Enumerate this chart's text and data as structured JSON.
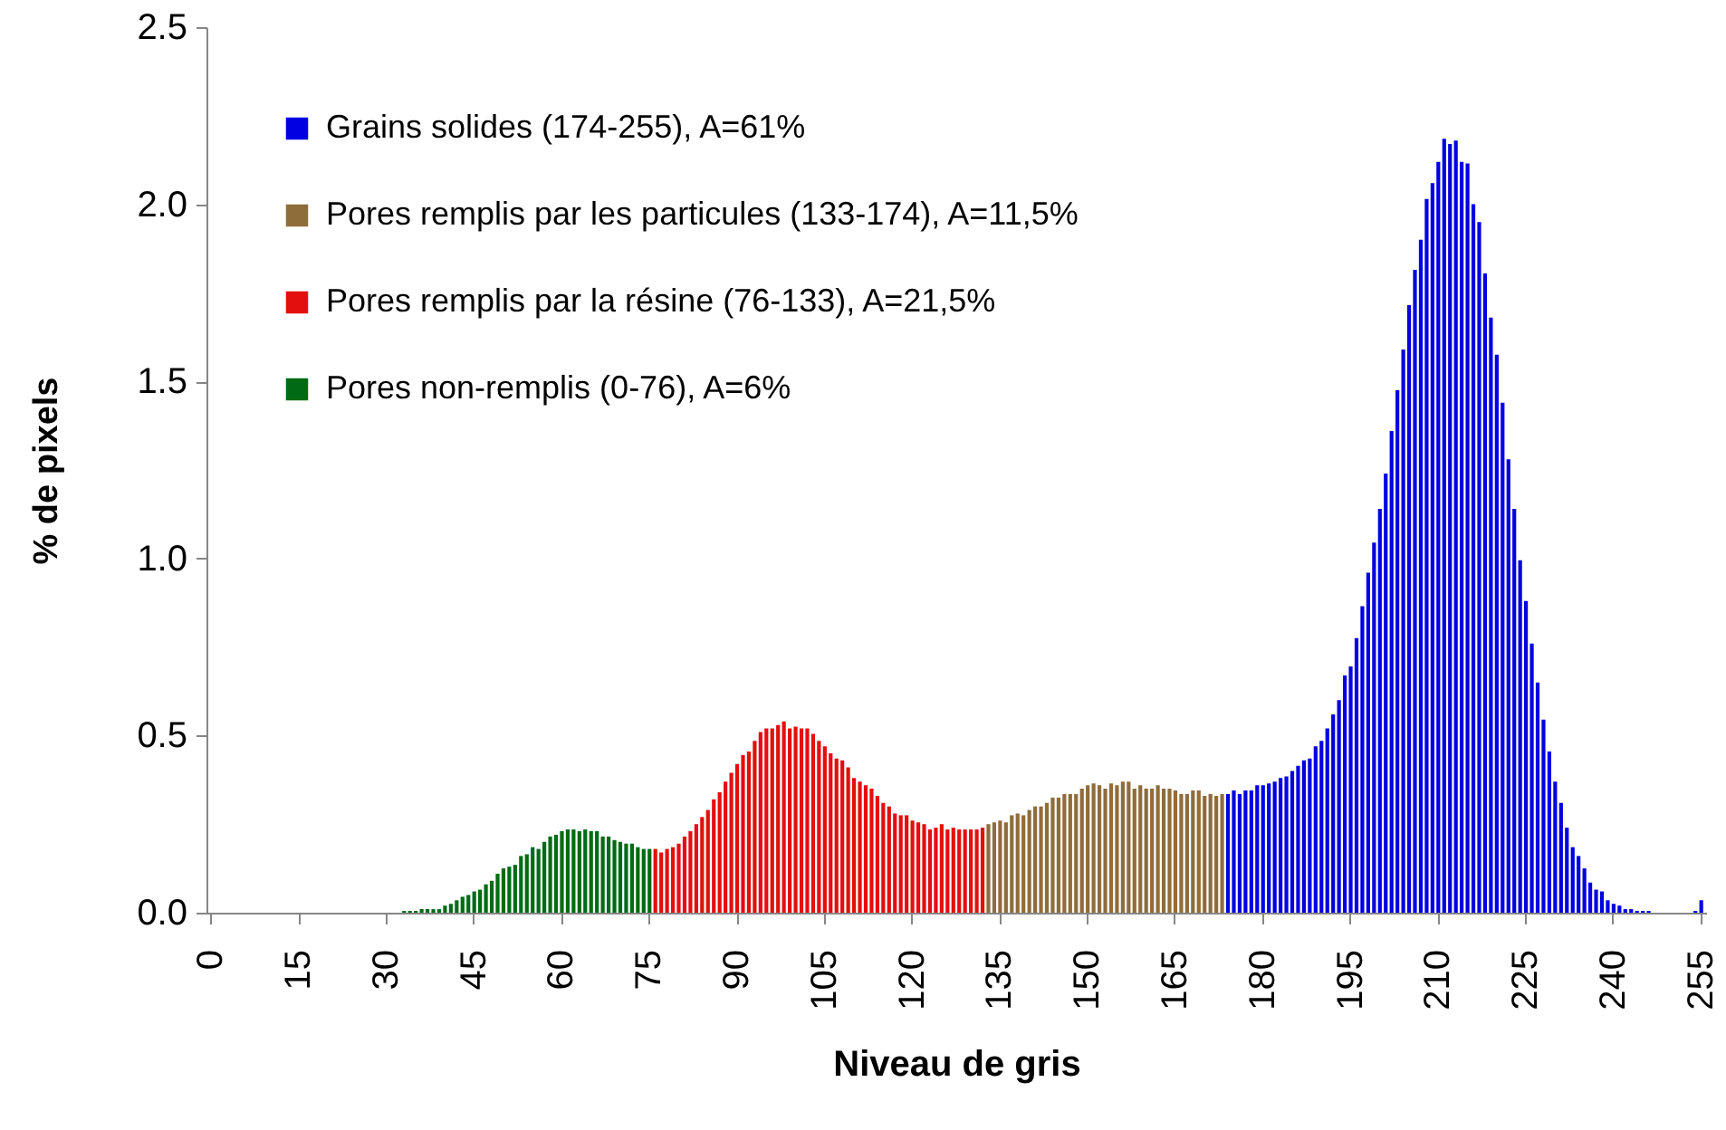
{
  "chart_data": {
    "type": "bar",
    "xlabel": "Niveau de gris",
    "ylabel": "% de pixels",
    "categories": [
      "0",
      null,
      null,
      null,
      null,
      null,
      null,
      null,
      null,
      null,
      null,
      null,
      null,
      null,
      null,
      "15",
      null,
      null,
      null,
      null,
      null,
      null,
      null,
      null,
      null,
      null,
      null,
      null,
      null,
      null,
      "30",
      null,
      null,
      null,
      null,
      null,
      null,
      null,
      null,
      null,
      null,
      null,
      null,
      null,
      null,
      "45",
      null,
      null,
      null,
      null,
      null,
      null,
      null,
      null,
      null,
      null,
      null,
      null,
      null,
      null,
      "60",
      null,
      null,
      null,
      null,
      null,
      null,
      null,
      null,
      null,
      null,
      null,
      null,
      null,
      null,
      "75",
      null,
      null,
      null,
      null,
      null,
      null,
      null,
      null,
      null,
      null,
      null,
      null,
      null,
      null,
      "90",
      null,
      null,
      null,
      null,
      null,
      null,
      null,
      null,
      null,
      null,
      null,
      null,
      null,
      null,
      "105",
      null,
      null,
      null,
      null,
      null,
      null,
      null,
      null,
      null,
      null,
      null,
      null,
      null,
      null,
      "120",
      null,
      null,
      null,
      null,
      null,
      null,
      null,
      null,
      null,
      null,
      null,
      null,
      null,
      null,
      "135",
      null,
      null,
      null,
      null,
      null,
      null,
      null,
      null,
      null,
      null,
      null,
      null,
      null,
      null,
      "150",
      null,
      null,
      null,
      null,
      null,
      null,
      null,
      null,
      null,
      null,
      null,
      null,
      null,
      null,
      "165",
      null,
      null,
      null,
      null,
      null,
      null,
      null,
      null,
      null,
      null,
      null,
      null,
      null,
      null,
      "180",
      null,
      null,
      null,
      null,
      null,
      null,
      null,
      null,
      null,
      null,
      null,
      null,
      null,
      null,
      "195",
      null,
      null,
      null,
      null,
      null,
      null,
      null,
      null,
      null,
      null,
      null,
      null,
      null,
      null,
      "210",
      null,
      null,
      null,
      null,
      null,
      null,
      null,
      null,
      null,
      null,
      null,
      null,
      null,
      null,
      "225",
      null,
      null,
      null,
      null,
      null,
      null,
      null,
      null,
      null,
      null,
      null,
      null,
      null,
      null,
      "240",
      null,
      null,
      null,
      null,
      null,
      null,
      null,
      null,
      null,
      null,
      null,
      null,
      null,
      null,
      "255"
    ],
    "series": [
      {
        "name": "Grains solides (174-255), A=61%",
        "color": "#0000e0",
        "values": [
          null,
          null,
          null,
          null,
          null,
          null,
          null,
          null,
          null,
          null,
          null,
          null,
          null,
          null,
          null,
          null,
          null,
          null,
          null,
          null,
          null,
          null,
          null,
          null,
          null,
          null,
          null,
          null,
          null,
          null,
          null,
          null,
          null,
          null,
          null,
          null,
          null,
          null,
          null,
          null,
          null,
          null,
          null,
          null,
          null,
          null,
          null,
          null,
          null,
          null,
          null,
          null,
          null,
          null,
          null,
          null,
          null,
          null,
          null,
          null,
          null,
          null,
          null,
          null,
          null,
          null,
          null,
          null,
          null,
          null,
          null,
          null,
          null,
          null,
          null,
          null,
          null,
          null,
          null,
          null,
          null,
          null,
          null,
          null,
          null,
          null,
          null,
          null,
          null,
          null,
          null,
          null,
          null,
          null,
          null,
          null,
          null,
          null,
          null,
          null,
          null,
          null,
          null,
          null,
          null,
          null,
          null,
          null,
          null,
          null,
          null,
          null,
          null,
          null,
          null,
          null,
          null,
          null,
          null,
          null,
          null,
          null,
          null,
          null,
          null,
          null,
          null,
          null,
          null,
          null,
          null,
          null,
          null,
          null,
          null,
          null,
          null,
          null,
          null,
          null,
          null,
          null,
          null,
          null,
          null,
          null,
          null,
          null,
          null,
          null,
          null,
          null,
          null,
          null,
          null,
          null,
          null,
          null,
          null,
          null,
          null,
          null,
          null,
          null,
          null,
          null,
          null,
          null,
          null,
          null,
          null,
          null,
          null,
          null,
          0.335,
          0.345,
          0.335,
          0.345,
          0.345,
          0.36,
          0.36,
          0.365,
          0.37,
          0.38,
          0.385,
          0.4,
          0.415,
          0.43,
          0.435,
          0.47,
          0.485,
          0.52,
          0.56,
          0.6,
          0.67,
          0.695,
          0.775,
          0.865,
          0.96,
          1.045,
          1.14,
          1.24,
          1.36,
          1.475,
          1.59,
          1.715,
          1.815,
          1.9,
          2.015,
          2.06,
          2.12,
          2.185,
          2.17,
          2.18,
          2.12,
          2.115,
          2.0,
          1.95,
          1.805,
          1.68,
          1.575,
          1.44,
          1.28,
          1.14,
          0.995,
          0.88,
          0.76,
          0.65,
          0.545,
          0.455,
          0.37,
          0.31,
          0.24,
          0.185,
          0.16,
          0.125,
          0.085,
          0.065,
          0.06,
          0.035,
          0.025,
          0.02,
          0.01,
          0.01,
          0.005,
          0.005,
          0.005,
          0,
          0,
          0,
          0,
          0,
          0,
          0,
          0.005,
          0.035
        ]
      },
      {
        "name": "Pores remplis par les particules (133-174), A=11,5%",
        "color": "#8f6d3b",
        "values": [
          null,
          null,
          null,
          null,
          null,
          null,
          null,
          null,
          null,
          null,
          null,
          null,
          null,
          null,
          null,
          null,
          null,
          null,
          null,
          null,
          null,
          null,
          null,
          null,
          null,
          null,
          null,
          null,
          null,
          null,
          null,
          null,
          null,
          null,
          null,
          null,
          null,
          null,
          null,
          null,
          null,
          null,
          null,
          null,
          null,
          null,
          null,
          null,
          null,
          null,
          null,
          null,
          null,
          null,
          null,
          null,
          null,
          null,
          null,
          null,
          null,
          null,
          null,
          null,
          null,
          null,
          null,
          null,
          null,
          null,
          null,
          null,
          null,
          null,
          null,
          null,
          null,
          null,
          null,
          null,
          null,
          null,
          null,
          null,
          null,
          null,
          null,
          null,
          null,
          null,
          null,
          null,
          null,
          null,
          null,
          null,
          null,
          null,
          null,
          null,
          null,
          null,
          null,
          null,
          null,
          null,
          null,
          null,
          null,
          null,
          null,
          null,
          null,
          null,
          null,
          null,
          null,
          null,
          null,
          null,
          null,
          null,
          null,
          null,
          null,
          null,
          null,
          null,
          null,
          null,
          null,
          null,
          null,
          0.25,
          0.255,
          0.26,
          0.255,
          0.275,
          0.28,
          0.275,
          0.29,
          0.3,
          0.3,
          0.31,
          0.325,
          0.325,
          0.335,
          0.335,
          0.335,
          0.35,
          0.36,
          0.365,
          0.36,
          0.35,
          0.365,
          0.36,
          0.37,
          0.37,
          0.35,
          0.36,
          0.35,
          0.35,
          0.36,
          0.35,
          0.35,
          0.345,
          0.335,
          0.335,
          0.345,
          0.345,
          0.33,
          0.335,
          0.33,
          0.335,
          null,
          null,
          null,
          null,
          null,
          null,
          null,
          null,
          null,
          null,
          null,
          null,
          null,
          null,
          null,
          null,
          null,
          null,
          null,
          null,
          null,
          null,
          null,
          null,
          null,
          null,
          null,
          null,
          null,
          null,
          null,
          null,
          null,
          null,
          null,
          null,
          null,
          null,
          null,
          null,
          null,
          null,
          null,
          null,
          null,
          null,
          null,
          null,
          null,
          null,
          null,
          null,
          null,
          null,
          null,
          null,
          null,
          null,
          null,
          null,
          null,
          null,
          null,
          null,
          null,
          null,
          null,
          null,
          null,
          null,
          null,
          null,
          null,
          null,
          null,
          null,
          null,
          null,
          null,
          null,
          null,
          null
        ]
      },
      {
        "name": "Pores remplis par la résine (76-133), A=21,5%",
        "color": "#e30f0f",
        "values": [
          null,
          null,
          null,
          null,
          null,
          null,
          null,
          null,
          null,
          null,
          null,
          null,
          null,
          null,
          null,
          null,
          null,
          null,
          null,
          null,
          null,
          null,
          null,
          null,
          null,
          null,
          null,
          null,
          null,
          null,
          null,
          null,
          null,
          null,
          null,
          null,
          null,
          null,
          null,
          null,
          null,
          null,
          null,
          null,
          null,
          null,
          null,
          null,
          null,
          null,
          null,
          null,
          null,
          null,
          null,
          null,
          null,
          null,
          null,
          null,
          null,
          null,
          null,
          null,
          null,
          null,
          null,
          null,
          null,
          null,
          null,
          null,
          null,
          null,
          null,
          null,
          0.18,
          0.17,
          0.18,
          0.185,
          0.195,
          0.215,
          0.23,
          0.25,
          0.27,
          0.29,
          0.32,
          0.34,
          0.37,
          0.395,
          0.42,
          0.445,
          0.455,
          0.485,
          0.51,
          0.52,
          0.52,
          0.53,
          0.54,
          0.52,
          0.525,
          0.52,
          0.52,
          0.505,
          0.485,
          0.47,
          0.45,
          0.435,
          0.43,
          0.41,
          0.38,
          0.37,
          0.36,
          0.35,
          0.33,
          0.31,
          0.3,
          0.28,
          0.275,
          0.275,
          0.26,
          0.255,
          0.25,
          0.235,
          0.24,
          0.25,
          0.235,
          0.24,
          0.235,
          0.235,
          0.235,
          0.235,
          0.24,
          null,
          null,
          null,
          null,
          null,
          null,
          null,
          null,
          null,
          null,
          null,
          null,
          null,
          null,
          null,
          null,
          null,
          null,
          null,
          null,
          null,
          null,
          null,
          null,
          null,
          null,
          null,
          null,
          null,
          null,
          null,
          null,
          null,
          null,
          null,
          null,
          null,
          null,
          null,
          null,
          null,
          null,
          null,
          null,
          null,
          null,
          null,
          null,
          null,
          null,
          null,
          null,
          null,
          null,
          null,
          null,
          null,
          null,
          null,
          null,
          null,
          null,
          null,
          null,
          null,
          null,
          null,
          null,
          null,
          null,
          null,
          null,
          null,
          null,
          null,
          null,
          null,
          null,
          null,
          null,
          null,
          null,
          null,
          null,
          null,
          null,
          null,
          null,
          null,
          null,
          null,
          null,
          null,
          null,
          null,
          null,
          null,
          null,
          null,
          null,
          null,
          null,
          null,
          null,
          null,
          null,
          null,
          null,
          null,
          null,
          null,
          null,
          null,
          null,
          null,
          null,
          null,
          null,
          null,
          null,
          null,
          null,
          null
        ]
      },
      {
        "name": "Pores non-remplis (0-76), A=6%",
        "color": "#006b14",
        "values": [
          0,
          0,
          0,
          0,
          0,
          0,
          0,
          0,
          0,
          0,
          0,
          0,
          0,
          0,
          0,
          0,
          0,
          0,
          0,
          0,
          0,
          0,
          0,
          0,
          0,
          0,
          0,
          0,
          0,
          0,
          0,
          0,
          0,
          0.005,
          0.005,
          0.005,
          0.01,
          0.01,
          0.01,
          0.01,
          0.02,
          0.025,
          0.035,
          0.045,
          0.05,
          0.06,
          0.065,
          0.08,
          0.09,
          0.11,
          0.125,
          0.13,
          0.135,
          0.16,
          0.165,
          0.185,
          0.18,
          0.2,
          0.215,
          0.22,
          0.23,
          0.235,
          0.235,
          0.23,
          0.235,
          0.23,
          0.23,
          0.215,
          0.215,
          0.205,
          0.2,
          0.195,
          0.195,
          0.185,
          0.18,
          0.18,
          null,
          null,
          null,
          null,
          null,
          null,
          null,
          null,
          null,
          null,
          null,
          null,
          null,
          null,
          null,
          null,
          null,
          null,
          null,
          null,
          null,
          null,
          null,
          null,
          null,
          null,
          null,
          null,
          null,
          null,
          null,
          null,
          null,
          null,
          null,
          null,
          null,
          null,
          null,
          null,
          null,
          null,
          null,
          null,
          null,
          null,
          null,
          null,
          null,
          null,
          null,
          null,
          null,
          null,
          null,
          null,
          null,
          null,
          null,
          null,
          null,
          null,
          null,
          null,
          null,
          null,
          null,
          null,
          null,
          null,
          null,
          null,
          null,
          null,
          null,
          null,
          null,
          null,
          null,
          null,
          null,
          null,
          null,
          null,
          null,
          null,
          null,
          null,
          null,
          null,
          null,
          null,
          null,
          null,
          null,
          null,
          null,
          null,
          null,
          null,
          null,
          null,
          null,
          null,
          null,
          null,
          null,
          null,
          null,
          null,
          null,
          null,
          null,
          null,
          null,
          null,
          null,
          null,
          null,
          null,
          null,
          null,
          null,
          null,
          null,
          null,
          null,
          null,
          null,
          null,
          null,
          null,
          null,
          null,
          null,
          null,
          null,
          null,
          null,
          null,
          null,
          null,
          null,
          null,
          null,
          null,
          null,
          null,
          null,
          null,
          null,
          null,
          null,
          null,
          null,
          null,
          null,
          null,
          null,
          null,
          null,
          null,
          null,
          null,
          null,
          null,
          null,
          null,
          null,
          null,
          null,
          null,
          null,
          null,
          null,
          null,
          null,
          null,
          null,
          null
        ]
      }
    ],
    "ylim": [
      0,
      2.5
    ],
    "yticks": [
      {
        "value": 0,
        "label": "0.0"
      },
      0.5,
      {
        "value": 1,
        "label": "1.0"
      },
      1.5,
      {
        "value": 2,
        "label": "2.0"
      },
      2.5
    ],
    "grid": false,
    "legend": "top left"
  }
}
